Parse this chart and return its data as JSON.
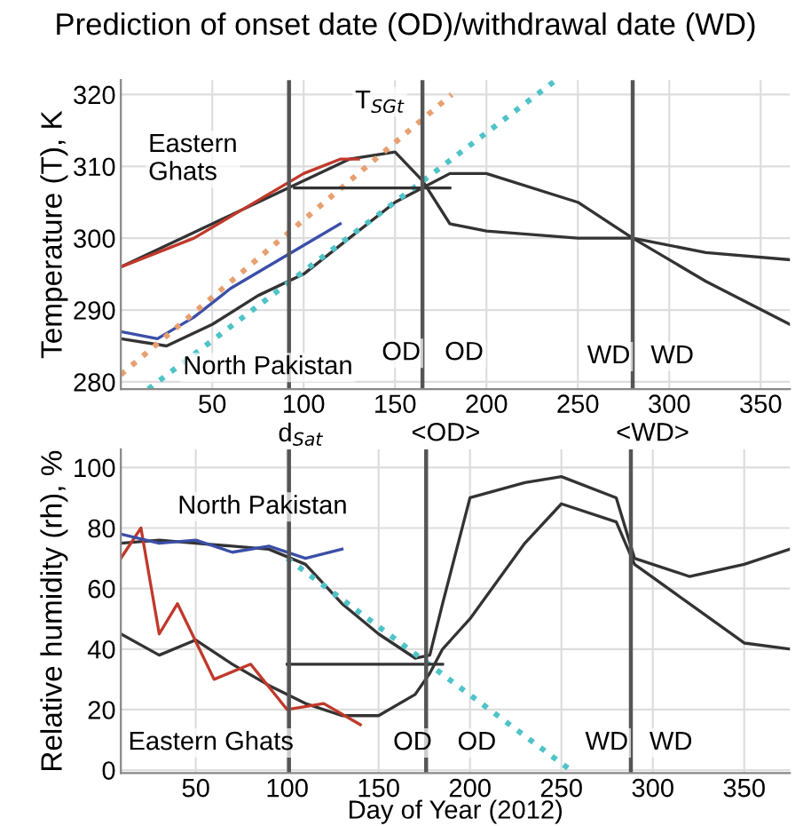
{
  "chart_data": [
    {
      "type": "line",
      "title": "Prediction of onset date (OD)/withdrawal date (WD)",
      "ylabel": "Temperature (T), K",
      "xlim": [
        0,
        366
      ],
      "xticks": [
        50,
        100,
        150,
        200,
        250,
        300,
        350
      ],
      "ylim": [
        279,
        322
      ],
      "yticks": [
        280,
        290,
        300,
        310,
        320
      ],
      "grid": true,
      "marker": "none",
      "series": [
        {
          "color": "#333333",
          "x": [
            0,
            25,
            50,
            75,
            100,
            125,
            150,
            165,
            180,
            200,
            250,
            280,
            320,
            366
          ],
          "values": [
            296,
            299,
            302,
            305,
            308,
            311,
            312,
            308,
            302,
            301,
            300,
            300,
            294,
            288
          ]
        },
        {
          "color": "#333333",
          "x": [
            0,
            25,
            50,
            75,
            100,
            125,
            150,
            165,
            180,
            200,
            250,
            280,
            320,
            366
          ],
          "values": [
            286,
            285,
            288,
            292,
            295,
            300,
            305,
            307,
            309,
            309,
            305,
            300,
            298,
            297
          ]
        },
        {
          "color": "#c0392b",
          "x": [
            0,
            20,
            40,
            60,
            80,
            100,
            120,
            130
          ],
          "values": [
            296,
            298,
            300,
            303,
            306,
            309,
            311,
            311
          ]
        },
        {
          "color": "#3b4fa8",
          "x": [
            0,
            20,
            40,
            60,
            80,
            100,
            120
          ],
          "values": [
            287,
            286,
            289,
            293,
            296,
            299,
            302
          ]
        },
        {
          "color": "#e8a070",
          "line_style": "dotted",
          "x": [
            0,
            181
          ],
          "values": [
            281,
            320
          ]
        },
        {
          "color": "#4fc3c8",
          "line_style": "dotted",
          "x": [
            15,
            238
          ],
          "values": [
            279,
            322
          ]
        },
        {
          "color": "#333333",
          "x": [
            95,
            180
          ],
          "values": [
            307,
            307
          ]
        }
      ],
      "ref_lines": [
        {
          "axis": "x",
          "value": 92,
          "color": "#555555"
        },
        {
          "axis": "x",
          "value": 165,
          "color": "#555555"
        },
        {
          "axis": "x",
          "value": 280,
          "color": "#555555"
        }
      ],
      "annotations": [
        "Eastern\nGhats",
        "North Pakistan",
        "T$_{SGt}$",
        "OD",
        "OD",
        "WD",
        "WD"
      ]
    },
    {
      "type": "line",
      "ylabel": "Relative humidity (rh), %",
      "xlabel": "Day of Year (2012)",
      "xlim": [
        9,
        375
      ],
      "xticks": [
        50,
        100,
        150,
        200,
        250,
        300,
        350
      ],
      "ylim": [
        -1,
        106
      ],
      "yticks": [
        0,
        20,
        40,
        60,
        80,
        100
      ],
      "grid": true,
      "marker": "none",
      "series": [
        {
          "color": "#333333",
          "x": [
            9,
            30,
            50,
            70,
            90,
            110,
            130,
            150,
            170,
            178,
            185,
            200,
            230,
            250,
            280,
            290,
            320,
            350,
            375
          ],
          "values": [
            75,
            76,
            75,
            74,
            73,
            68,
            55,
            45,
            37,
            38,
            55,
            90,
            95,
            97,
            90,
            70,
            64,
            68,
            73
          ]
        },
        {
          "color": "#333333",
          "x": [
            9,
            30,
            50,
            70,
            90,
            110,
            130,
            150,
            170,
            178,
            185,
            200,
            230,
            250,
            280,
            290,
            320,
            350,
            375
          ],
          "values": [
            45,
            38,
            43,
            35,
            28,
            22,
            18,
            18,
            25,
            32,
            40,
            50,
            75,
            88,
            82,
            68,
            55,
            42,
            40
          ]
        },
        {
          "color": "#c0392b",
          "x": [
            9,
            20,
            30,
            40,
            60,
            80,
            100,
            120,
            140
          ],
          "values": [
            70,
            80,
            45,
            55,
            30,
            35,
            20,
            22,
            15
          ]
        },
        {
          "color": "#3b4fa8",
          "x": [
            9,
            30,
            50,
            70,
            90,
            110,
            130
          ],
          "values": [
            78,
            75,
            76,
            72,
            74,
            70,
            73
          ]
        },
        {
          "color": "#4fc3c8",
          "line_style": "dotted",
          "x": [
            100,
            255
          ],
          "values": [
            70,
            0
          ]
        },
        {
          "color": "#333333",
          "x": [
            100,
            185
          ],
          "values": [
            35,
            35
          ]
        }
      ],
      "ref_lines": [
        {
          "axis": "x",
          "value": 101,
          "color": "#555555"
        },
        {
          "axis": "x",
          "value": 176,
          "color": "#555555"
        },
        {
          "axis": "x",
          "value": 288,
          "color": "#555555"
        }
      ],
      "annotations": [
        "North Pakistan",
        "Eastern Ghats",
        "d$_{Sat}$",
        "<OD>",
        "<WD>",
        "OD",
        "OD",
        "WD",
        "WD"
      ]
    }
  ]
}
